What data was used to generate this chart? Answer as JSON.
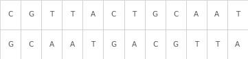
{
  "row1": [
    "C",
    "G",
    "T",
    "T",
    "A",
    "C",
    "T",
    "G",
    "C",
    "A",
    "A",
    "T"
  ],
  "row2": [
    "G",
    "C",
    "A",
    "A",
    "T",
    "G",
    "A",
    "C",
    "G",
    "T",
    "T",
    "A"
  ],
  "num_cols": 12,
  "num_rows": 2,
  "cell_border_color": "#c8c8c8",
  "text_color": "#555555",
  "background_color": "#ffffff",
  "font_size": 7.5
}
